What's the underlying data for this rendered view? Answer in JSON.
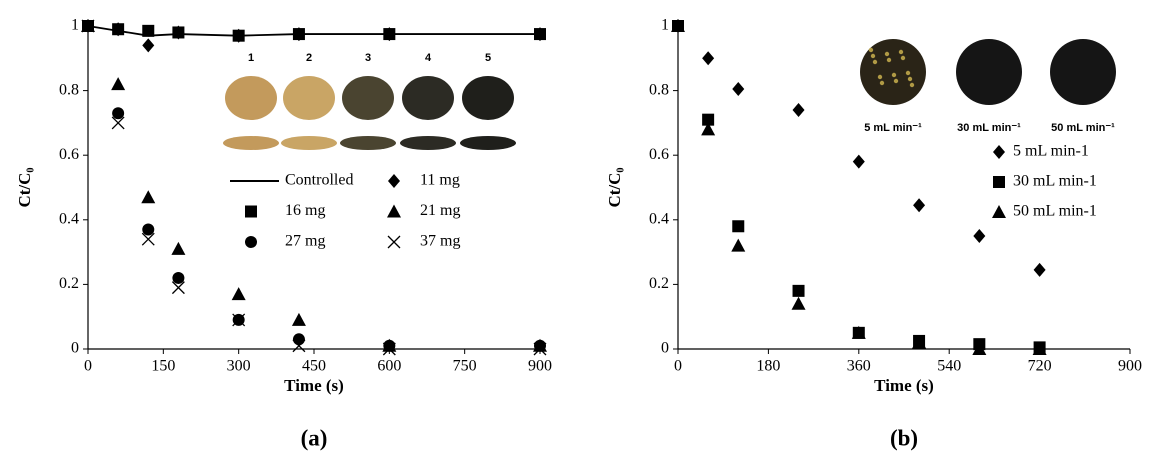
{
  "chart_data": [
    {
      "type": "scatter",
      "label": "(a)",
      "x_label": "Time (s)",
      "y_label": "Ct/C₀",
      "x": [
        0,
        60,
        120,
        180,
        300,
        420,
        600,
        900
      ],
      "xlim": [
        0,
        900
      ],
      "xticks": [
        0,
        150,
        300,
        450,
        600,
        750,
        900
      ],
      "ylim": [
        0,
        1
      ],
      "yticks": [
        0,
        0.2,
        0.4,
        0.6,
        0.8,
        1
      ],
      "legend_columns": 2,
      "inset_labels": [
        "1",
        "2",
        "3",
        "4",
        "5"
      ],
      "series": [
        {
          "name": "Controlled",
          "marker": "line",
          "color": "#000000",
          "values": [
            1,
            0.985,
            0.97,
            0.975,
            0.97,
            0.975,
            0.975,
            0.975
          ]
        },
        {
          "name": "11 mg",
          "marker": "diamond",
          "color": "#000000",
          "values": [
            1,
            0.99,
            0.94,
            0.98,
            0.97,
            0.975,
            0.975,
            0.975
          ]
        },
        {
          "name": "16 mg",
          "marker": "square",
          "color": "#000000",
          "values": [
            1,
            0.99,
            0.985,
            0.98,
            0.97,
            0.975,
            0.975,
            0.975
          ]
        },
        {
          "name": "21 mg",
          "marker": "triangle",
          "color": "#000000",
          "values": [
            1,
            0.82,
            0.47,
            0.31,
            0.17,
            0.09,
            0.01,
            0.01
          ]
        },
        {
          "name": "27 mg",
          "marker": "circle",
          "color": "#000000",
          "values": [
            1,
            0.73,
            0.37,
            0.22,
            0.09,
            0.03,
            0.01,
            0.01
          ]
        },
        {
          "name": "37 mg",
          "marker": "x",
          "color": "#000000",
          "values": [
            1,
            0.7,
            0.34,
            0.19,
            0.09,
            0.01,
            0,
            0
          ]
        }
      ]
    },
    {
      "type": "scatter",
      "label": "(b)",
      "x_label": "Time (s)",
      "y_label": "Ct/C₀",
      "x": [
        0,
        60,
        120,
        240,
        360,
        480,
        600,
        720
      ],
      "xlim": [
        0,
        900
      ],
      "xticks": [
        0,
        180,
        360,
        540,
        720,
        900
      ],
      "ylim": [
        0,
        1
      ],
      "yticks": [
        0,
        0.2,
        0.4,
        0.6,
        0.8,
        1
      ],
      "legend_columns": 1,
      "inset_labels": [
        "5 mL min⁻¹",
        "30 mL min⁻¹",
        "50 mL min⁻¹"
      ],
      "series": [
        {
          "name": "5 mL min-1",
          "marker": "diamond",
          "color": "#000000",
          "values": [
            1,
            0.9,
            0.805,
            0.74,
            0.58,
            0.445,
            0.35,
            0.245
          ]
        },
        {
          "name": "30 mL min-1",
          "marker": "square",
          "color": "#000000",
          "values": [
            1,
            0.71,
            0.38,
            0.18,
            0.05,
            0.025,
            0.015,
            0.005
          ]
        },
        {
          "name": "50 mL min-1",
          "marker": "triangle",
          "color": "#000000",
          "values": [
            1,
            0.68,
            0.32,
            0.14,
            0.05,
            0.02,
            0,
            0
          ]
        }
      ]
    }
  ]
}
